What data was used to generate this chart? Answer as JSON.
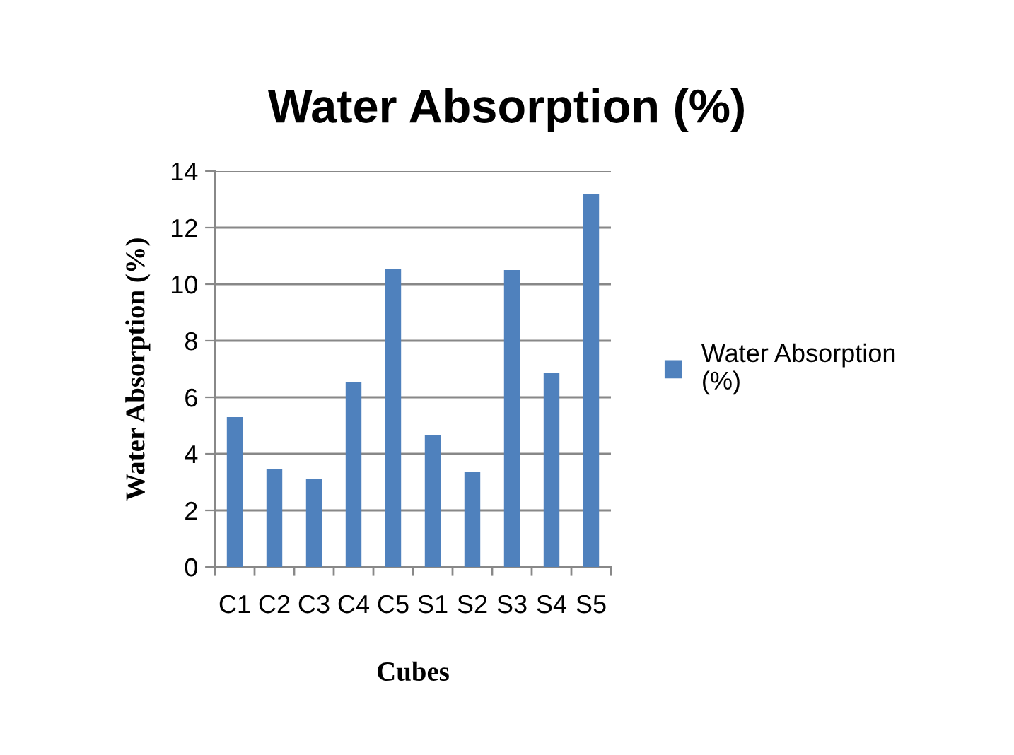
{
  "chart_data": {
    "type": "bar",
    "title": "Water Absorption (%)",
    "xlabel": "Cubes",
    "ylabel": "Water Absorption (%)",
    "categories": [
      "C1",
      "C2",
      "C3",
      "C4",
      "C5",
      "S1",
      "S2",
      "S3",
      "S4",
      "S5"
    ],
    "series": [
      {
        "name": "Water Absorption (%)",
        "color": "#4f81bd",
        "values": [
          5.3,
          3.45,
          3.1,
          6.55,
          10.55,
          4.65,
          3.35,
          10.5,
          6.85,
          13.2
        ]
      }
    ],
    "ylim": [
      0,
      14
    ],
    "yticks": [
      0,
      2,
      4,
      6,
      8,
      10,
      12,
      14
    ],
    "grid": "y",
    "legend": "right"
  }
}
